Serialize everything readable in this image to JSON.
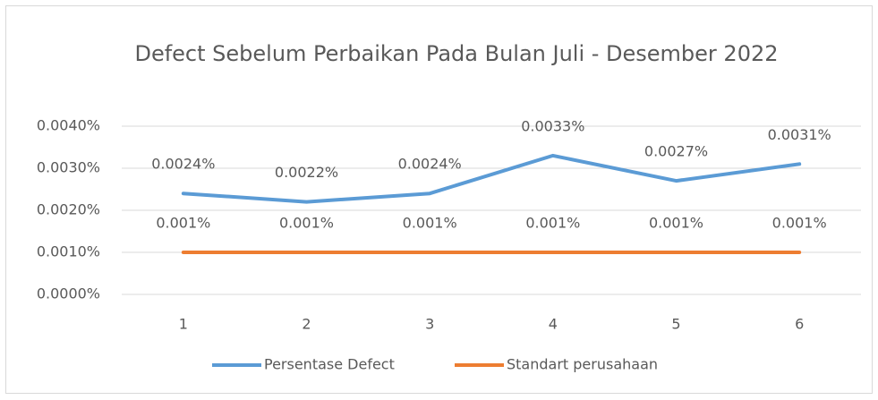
{
  "chart_data": {
    "type": "line",
    "title": "Defect Sebelum Perbaikan Pada Bulan Juli - Desember 2022",
    "categories": [
      "1",
      "2",
      "3",
      "4",
      "5",
      "6"
    ],
    "series": [
      {
        "name": "Persentase Defect",
        "color": "#5b9bd5",
        "values": [
          0.0024,
          0.0022,
          0.0024,
          0.0033,
          0.0027,
          0.0031
        ],
        "value_labels": [
          "0.0024%",
          "0.0022%",
          "0.0024%",
          "0.0033%",
          "0.0027%",
          "0.0031%"
        ]
      },
      {
        "name": "Standart perusahaan",
        "color": "#ed7d31",
        "values": [
          0.001,
          0.001,
          0.001,
          0.001,
          0.001,
          0.001
        ],
        "value_labels": [
          "0.001%",
          "0.001%",
          "0.001%",
          "0.001%",
          "0.001%",
          "0.001%"
        ]
      }
    ],
    "ylim": [
      0,
      0.004
    ],
    "yticks": [
      {
        "value": 0,
        "label": "0.0000%"
      },
      {
        "value": 0.001,
        "label": "0.0010%"
      },
      {
        "value": 0.002,
        "label": "0.0020%"
      },
      {
        "value": 0.003,
        "label": "0.0030%"
      },
      {
        "value": 0.004,
        "label": "0.0040%"
      }
    ],
    "grid": true,
    "legend": "bottom"
  }
}
